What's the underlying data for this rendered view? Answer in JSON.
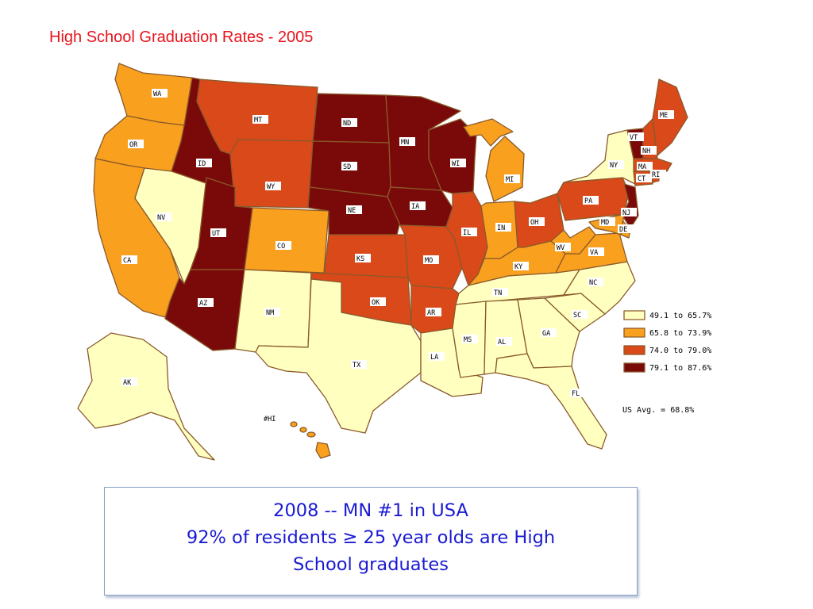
{
  "title": "High School Graduation Rates - 2005",
  "colors": {
    "c1": "#ffffc0",
    "c2": "#f9a01f",
    "c3": "#d9491a",
    "c4": "#7a0a0a",
    "border": "#8a5a2a"
  },
  "legend": {
    "items": [
      {
        "label": "49.1 to 65.7%",
        "color": "#ffffc0"
      },
      {
        "label": "65.8 to 73.9%",
        "color": "#f9a01f"
      },
      {
        "label": "74.0 to 79.0%",
        "color": "#d9491a"
      },
      {
        "label": "79.1 to 87.6%",
        "color": "#7a0a0a"
      }
    ],
    "us_avg": "US Avg. = 68.8%"
  },
  "states": {
    "WA": "WA",
    "OR": "OR",
    "CA": "CA",
    "NV": "NV",
    "ID": "ID",
    "MT": "MT",
    "WY": "WY",
    "UT": "UT",
    "AZ": "AZ",
    "CO": "CO",
    "NM": "NM",
    "ND": "ND",
    "SD": "SD",
    "NE": "NE",
    "KS": "KS",
    "OK": "OK",
    "TX": "TX",
    "MN": "MN",
    "IA": "IA",
    "MO": "MO",
    "AR": "AR",
    "LA": "LA",
    "WI": "WI",
    "IL": "IL",
    "MI": "MI",
    "IN": "IN",
    "OH": "OH",
    "KY": "KY",
    "TN": "TN",
    "MS": "MS",
    "AL": "AL",
    "GA": "GA",
    "FL": "FL",
    "SC": "SC",
    "NC": "NC",
    "VA": "VA",
    "WV": "WV",
    "PA": "PA",
    "NY": "NY",
    "VT": "VT",
    "NH": "NH",
    "ME": "ME",
    "MA": "MA",
    "CT": "CT",
    "RI": "RI",
    "NJ": "NJ",
    "DE": "DE",
    "MD": "MD",
    "AK": "AK",
    "HI": "#HI"
  },
  "callout": {
    "line1": "2008 -- MN #1 in USA",
    "line2": "92% of residents ≥ 25 year olds are High",
    "line3": "School graduates"
  }
}
